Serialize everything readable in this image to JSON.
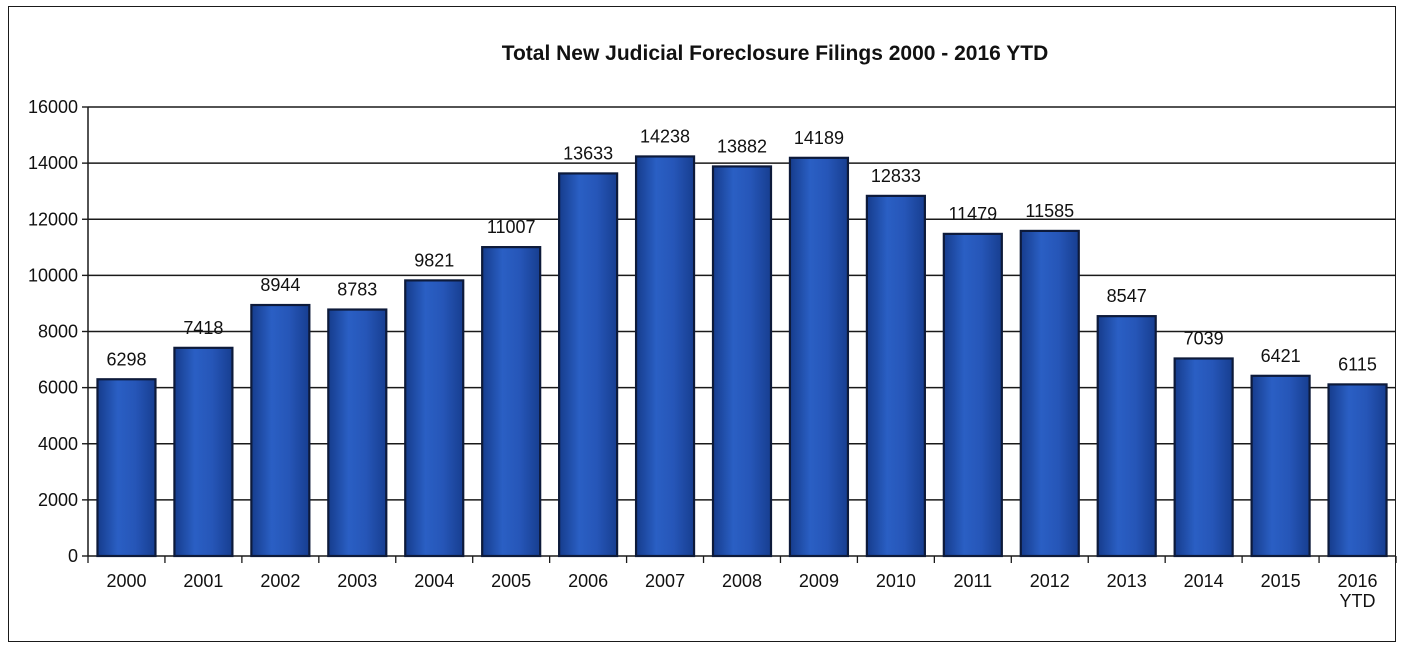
{
  "chart_data": {
    "type": "bar",
    "title": "Total New Judicial Foreclosure Filings 2000 - 2016  YTD",
    "xlabel": "",
    "ylabel": "",
    "categories": [
      "2000",
      "2001",
      "2002",
      "2003",
      "2004",
      "2005",
      "2006",
      "2007",
      "2008",
      "2009",
      "2010",
      "2011",
      "2012",
      "2013",
      "2014",
      "2015",
      "2016 YTD"
    ],
    "values": [
      6298,
      7418,
      8944,
      8783,
      9821,
      11007,
      13633,
      14238,
      13882,
      14189,
      12833,
      11479,
      11585,
      8547,
      7039,
      6421,
      6115
    ],
    "ylim": [
      0,
      16000
    ],
    "yticks": [
      0,
      2000,
      4000,
      6000,
      8000,
      10000,
      12000,
      14000,
      16000
    ],
    "grid": true,
    "legend": "none",
    "bar_color": "#1f4fb0",
    "bar_edge_color": "#0d1a3a"
  }
}
